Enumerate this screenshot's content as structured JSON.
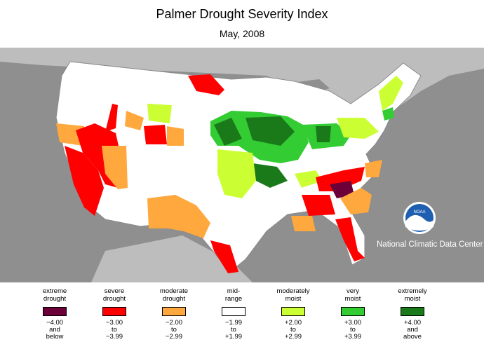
{
  "title": "Palmer Drought Severity Index",
  "subtitle": "May, 2008",
  "credit": "National Climatic Data Center",
  "logo_text": "NOAA",
  "colors": {
    "background": "#ffffff",
    "ocean": "#8f8f8f",
    "land": "#ffffff",
    "border": "#8a8a8a"
  },
  "legend": [
    {
      "line1": "extreme",
      "line2": "drought",
      "color": "#6b0038",
      "r1": "−4.00",
      "r2": "and",
      "r3": "below"
    },
    {
      "line1": "severe",
      "line2": "drought",
      "color": "#ff0000",
      "r1": "−3.00",
      "r2": "to",
      "r3": "−3.99"
    },
    {
      "line1": "moderate",
      "line2": "drought",
      "color": "#ffa83e",
      "r1": "−2.00",
      "r2": "to",
      "r3": "−2.99"
    },
    {
      "line1": "mid-",
      "line2": "range",
      "color": "#ffffff",
      "r1": "−1.99",
      "r2": "to",
      "r3": "+1.99"
    },
    {
      "line1": "moderately",
      "line2": "moist",
      "color": "#ccff33",
      "r1": "+2.00",
      "r2": "to",
      "r3": "+2.99"
    },
    {
      "line1": "very",
      "line2": "moist",
      "color": "#33cc33",
      "r1": "+3.00",
      "r2": "to",
      "r3": "+3.99"
    },
    {
      "line1": "extremely",
      "line2": "moist",
      "color": "#1a7a1a",
      "r1": "+4.00",
      "r2": "and",
      "r3": "above"
    }
  ]
}
